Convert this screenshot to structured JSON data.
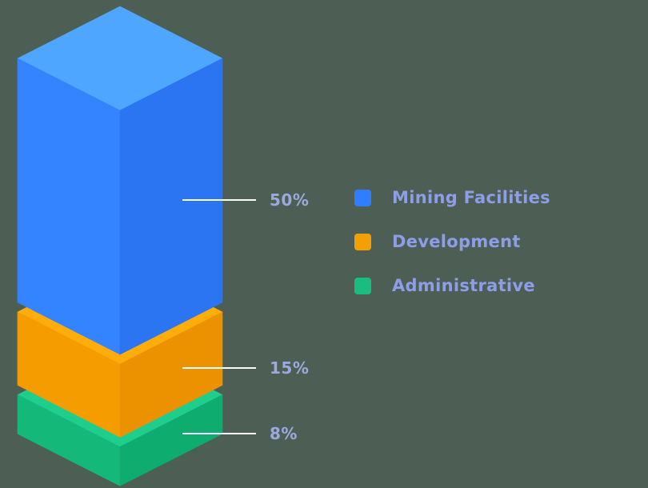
{
  "background": "#4d5f55",
  "chart_data": {
    "type": "bar",
    "subtype": "3d-isometric-stacked-column",
    "title": "",
    "categories": [
      "Mining Facilities",
      "Development",
      "Administrative"
    ],
    "values": [
      50,
      15,
      8
    ],
    "unit": "percent",
    "value_labels": [
      "50%",
      "15%",
      "8%"
    ],
    "colors": [
      {
        "top": "#4FA6FF",
        "left": "#3484FF",
        "right": "#2B74F2"
      },
      {
        "top": "#FFAD0A",
        "left": "#F59C00",
        "right": "#EC9200"
      },
      {
        "top": "#1FCE8D",
        "left": "#14B97A",
        "right": "#0FAC6F"
      }
    ],
    "legend": [
      {
        "label": "Mining Facilities",
        "color": "#2E7EFF"
      },
      {
        "label": "Development",
        "color": "#F3A005"
      },
      {
        "label": "Administrative",
        "color": "#19BD7F"
      }
    ],
    "legend_position": "right",
    "leader_line_color": "#ffffff",
    "value_label_color": "#9EA8DE",
    "legend_text_color": "#8D9EE8"
  }
}
